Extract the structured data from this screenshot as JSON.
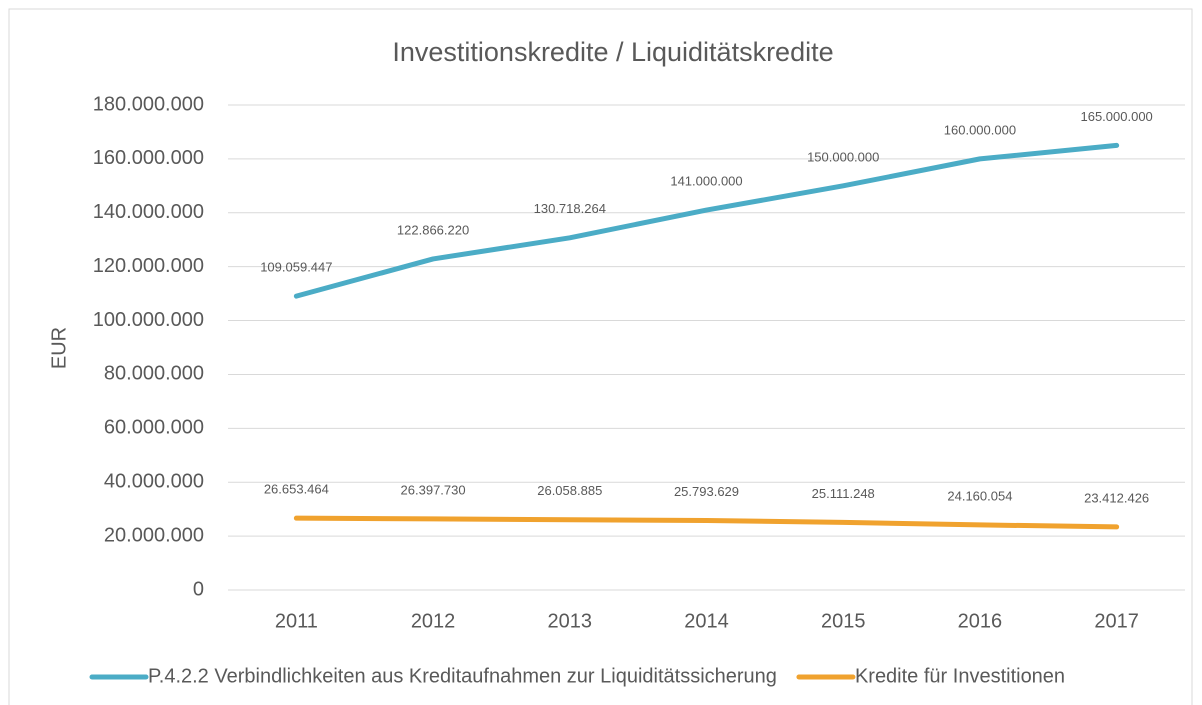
{
  "chart_data": {
    "type": "line",
    "title": "Investitionskredite / Liquiditätskredite",
    "y_label": "EUR",
    "categories": [
      "2011",
      "2012",
      "2013",
      "2014",
      "2015",
      "2016",
      "2017"
    ],
    "series": [
      {
        "name": "P.4.2.2 Verbindlichkeiten aus Kreditaufnahmen zur Liquiditätssicherung",
        "color": "#4bacc6",
        "values": [
          109059447,
          122866220,
          130718264,
          141000000,
          150000000,
          160000000,
          165000000
        ],
        "value_labels": [
          "109.059.447",
          "122.866.220",
          "130.718.264",
          "141.000.000",
          "150.000.000",
          "160.000.000",
          "165.000.000"
        ]
      },
      {
        "name": "Kredite für Investitionen",
        "color": "#f0a22e",
        "values": [
          26653464,
          26397730,
          26058885,
          25793629,
          25111248,
          24160054,
          23412426
        ],
        "value_labels": [
          "26.653.464",
          "26.397.730",
          "26.058.885",
          "25.793.629",
          "25.111.248",
          "24.160.054",
          "23.412.426"
        ]
      }
    ],
    "ylim": [
      0,
      180000000
    ],
    "yticks": [
      0,
      {
        "value": 20000000,
        "label": "20.000.000"
      },
      {
        "value": 40000000,
        "label": "40.000.000"
      },
      {
        "value": 60000000,
        "label": "60.000.000"
      },
      {
        "value": 80000000,
        "label": "80.000.000"
      },
      {
        "value": 100000000,
        "label": "100.000.000"
      },
      {
        "value": 120000000,
        "label": "120.000.000"
      },
      {
        "value": 140000000,
        "label": "140.000.000"
      },
      {
        "value": 160000000,
        "label": "160.000.000"
      },
      {
        "value": 180000000,
        "label": "180.000.000"
      }
    ],
    "grid": true,
    "legend": "bottom"
  }
}
